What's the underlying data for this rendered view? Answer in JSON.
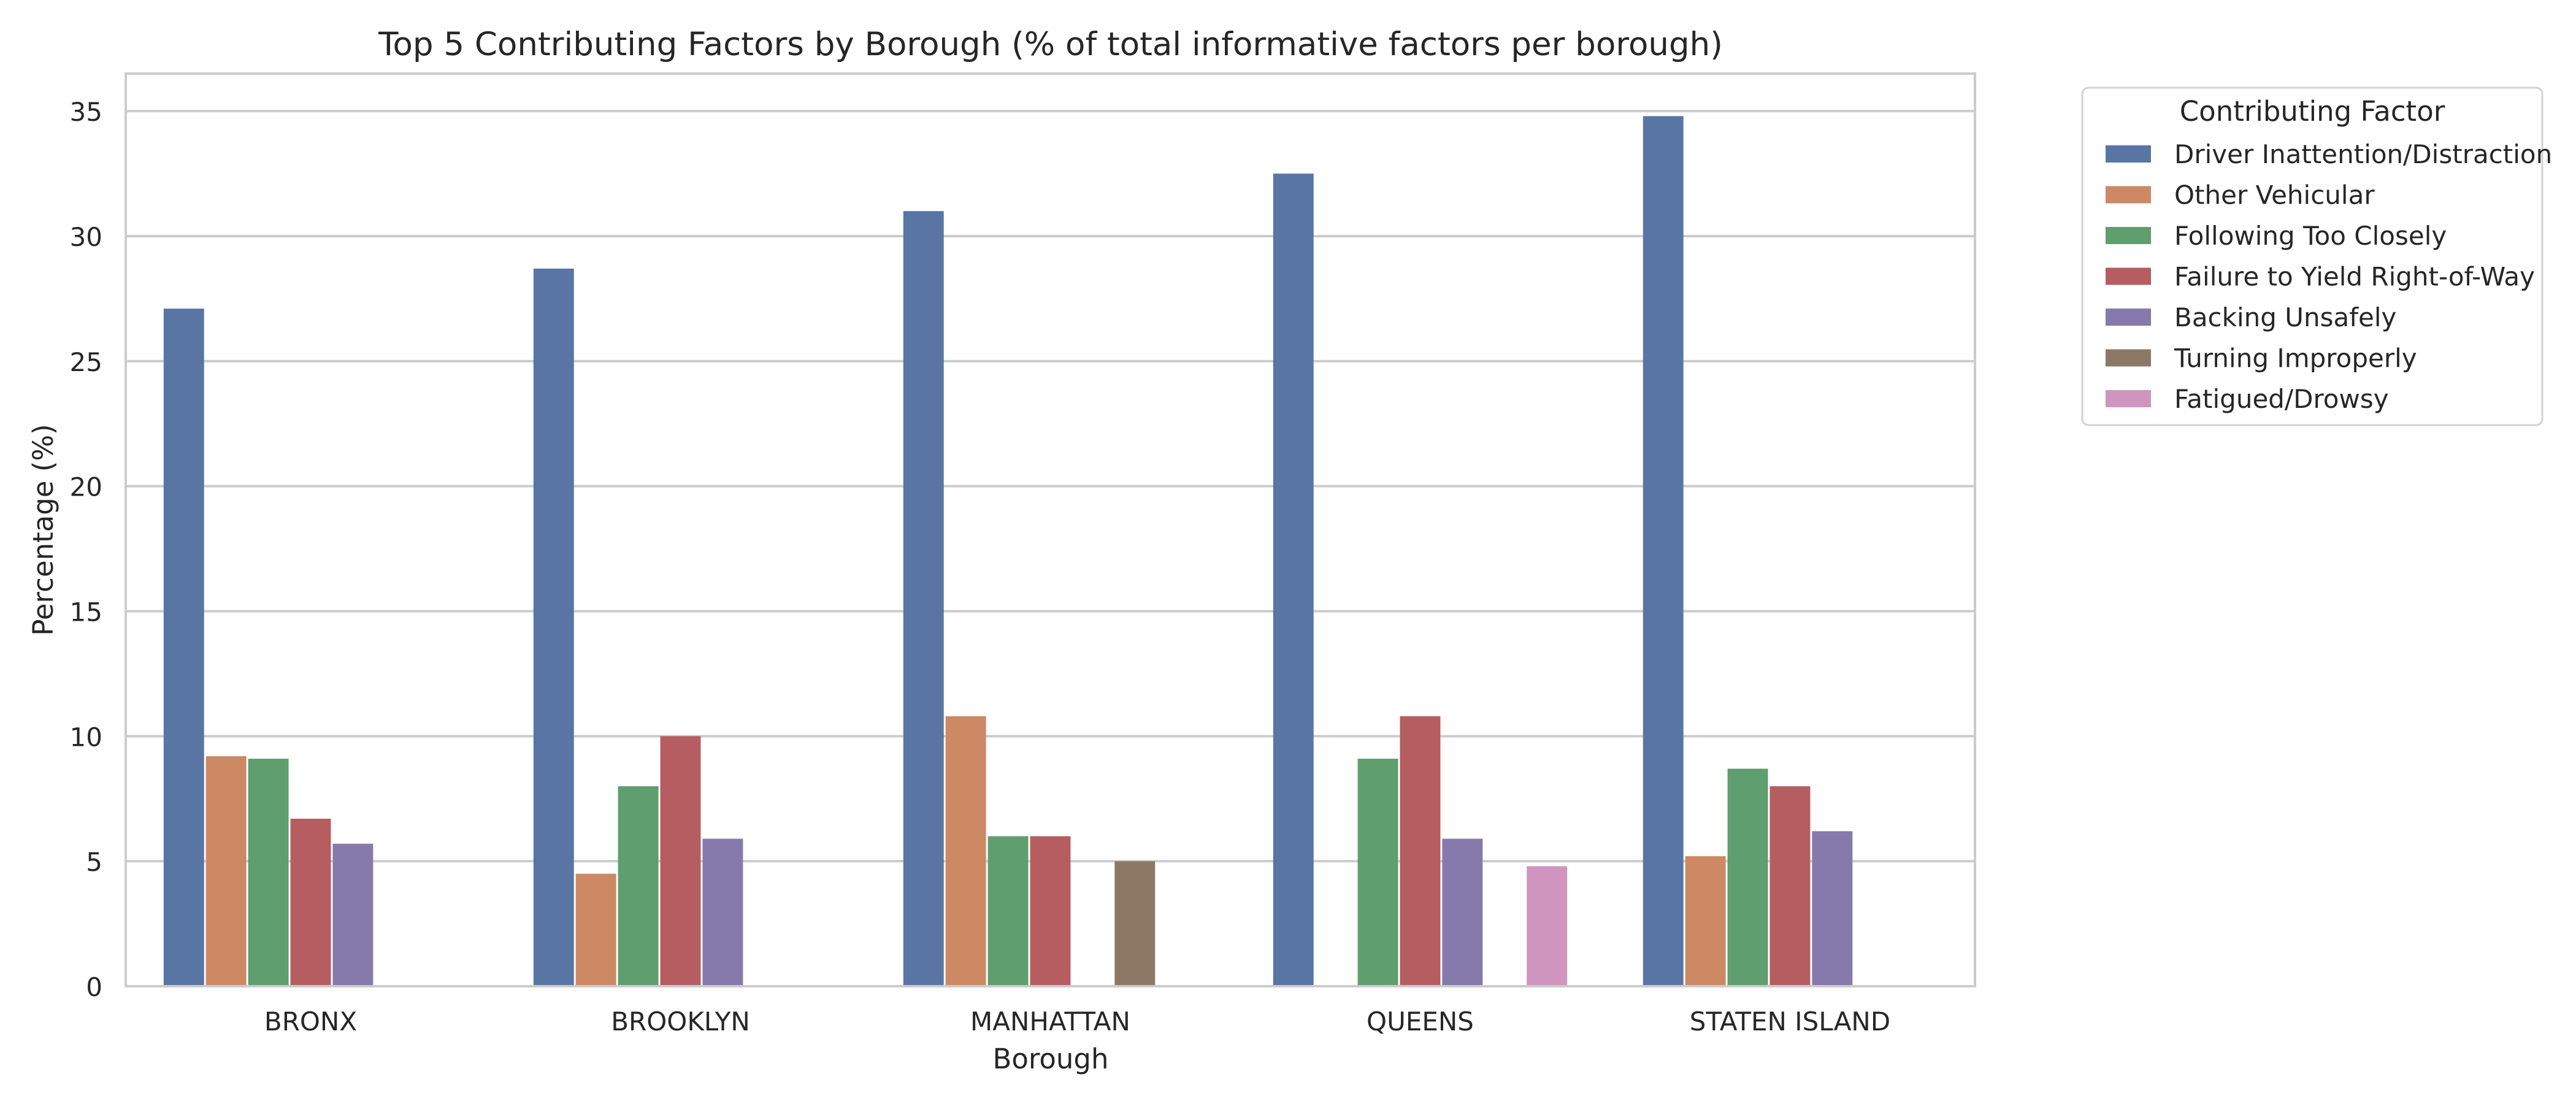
{
  "chart_data": {
    "type": "bar",
    "title": "Top 5 Contributing Factors by Borough (% of total informative factors per borough)",
    "xlabel": "Borough",
    "ylabel": "Percentage (%)",
    "ylim": [
      0,
      36.5
    ],
    "yticks": [
      0,
      5,
      10,
      15,
      20,
      25,
      30,
      35
    ],
    "grid": true,
    "legend": {
      "title": "Contributing Factor",
      "placement": "outside-top-right"
    },
    "categories": [
      "BRONX",
      "BROOKLYN",
      "MANHATTAN",
      "QUEENS",
      "STATEN ISLAND"
    ],
    "series": [
      {
        "name": "Driver Inattention/Distraction",
        "color": "#5875a4",
        "values": [
          27.1,
          28.7,
          31.0,
          32.5,
          34.8
        ]
      },
      {
        "name": "Other Vehicular",
        "color": "#cc8963",
        "values": [
          9.2,
          4.5,
          10.8,
          null,
          5.2
        ]
      },
      {
        "name": "Following Too Closely",
        "color": "#5f9e6e",
        "values": [
          9.1,
          8.0,
          6.0,
          9.1,
          8.7
        ]
      },
      {
        "name": "Failure to Yield Right-of-Way",
        "color": "#b55d60",
        "values": [
          6.7,
          10.0,
          6.0,
          10.8,
          8.0
        ]
      },
      {
        "name": "Backing Unsafely",
        "color": "#857aab",
        "values": [
          5.7,
          5.9,
          null,
          5.9,
          6.2
        ]
      },
      {
        "name": "Turning Improperly",
        "color": "#8d7866",
        "values": [
          null,
          null,
          5.0,
          null,
          null
        ]
      },
      {
        "name": "Fatigued/Drowsy",
        "color": "#d095bf",
        "values": [
          null,
          null,
          null,
          4.8,
          null
        ]
      }
    ]
  }
}
